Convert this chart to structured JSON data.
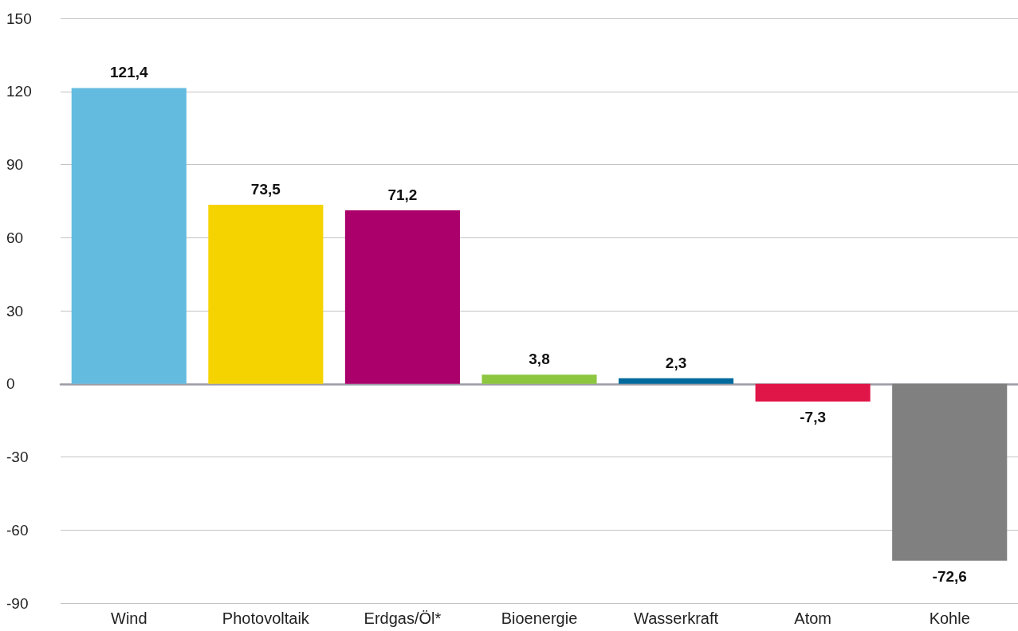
{
  "chart_data": {
    "type": "bar",
    "categories": [
      "Wind",
      "Photovoltaik",
      "Erdgas/Öl*",
      "Bioenergie",
      "Wasserkraft",
      "Atom",
      "Kohle"
    ],
    "values": [
      121.4,
      73.5,
      71.2,
      3.8,
      2.3,
      -7.3,
      -72.6
    ],
    "colors": [
      "#64bbe0",
      "#f5d300",
      "#ab006b",
      "#8dc63f",
      "#006a9c",
      "#e01548",
      "#808080"
    ],
    "value_labels": [
      "121,4",
      "73,5",
      "71,2",
      "3,8",
      "2,3",
      "-7,3",
      "-72,6"
    ],
    "ylim": [
      -90,
      150
    ],
    "yticks": [
      -90,
      -60,
      -30,
      0,
      30,
      60,
      90,
      120,
      150
    ],
    "grid": "y"
  }
}
